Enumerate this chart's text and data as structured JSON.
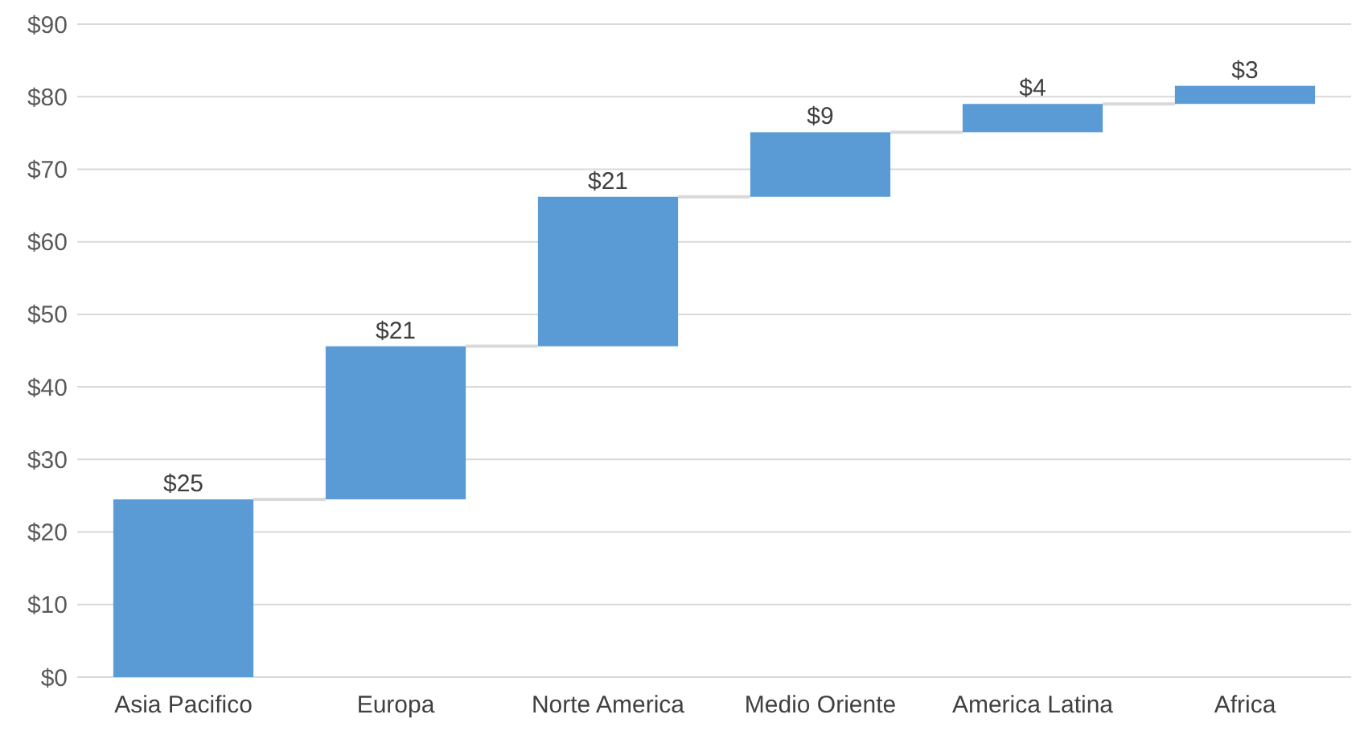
{
  "chart_data": {
    "type": "bar",
    "categories": [
      "Asia Pacifico",
      "Europa",
      "Norte America",
      "Medio Oriente",
      "America Latina",
      "Africa"
    ],
    "values": [
      24.5,
      21.1,
      20.6,
      8.9,
      3.9,
      2.5
    ],
    "base": [
      0,
      24.5,
      45.6,
      66.2,
      75.1,
      79.0
    ],
    "value_labels": [
      "$25",
      "$21",
      "$21",
      "$9",
      "$4",
      "$3"
    ],
    "color": "#5b9bd5",
    "ylim": [
      0,
      90
    ],
    "yticks": [
      {
        "value": 0,
        "label": "$0"
      },
      {
        "value": 10,
        "label": "$10"
      },
      {
        "value": 20,
        "label": "$20"
      },
      {
        "value": 30,
        "label": "$30"
      },
      {
        "value": 40,
        "label": "$40"
      },
      {
        "value": 50,
        "label": "$50"
      },
      {
        "value": 60,
        "label": "$60"
      },
      {
        "value": 70,
        "label": "$70"
      },
      {
        "value": 80,
        "label": "$80"
      },
      {
        "value": 90,
        "label": "$90"
      }
    ],
    "grid": "y"
  }
}
